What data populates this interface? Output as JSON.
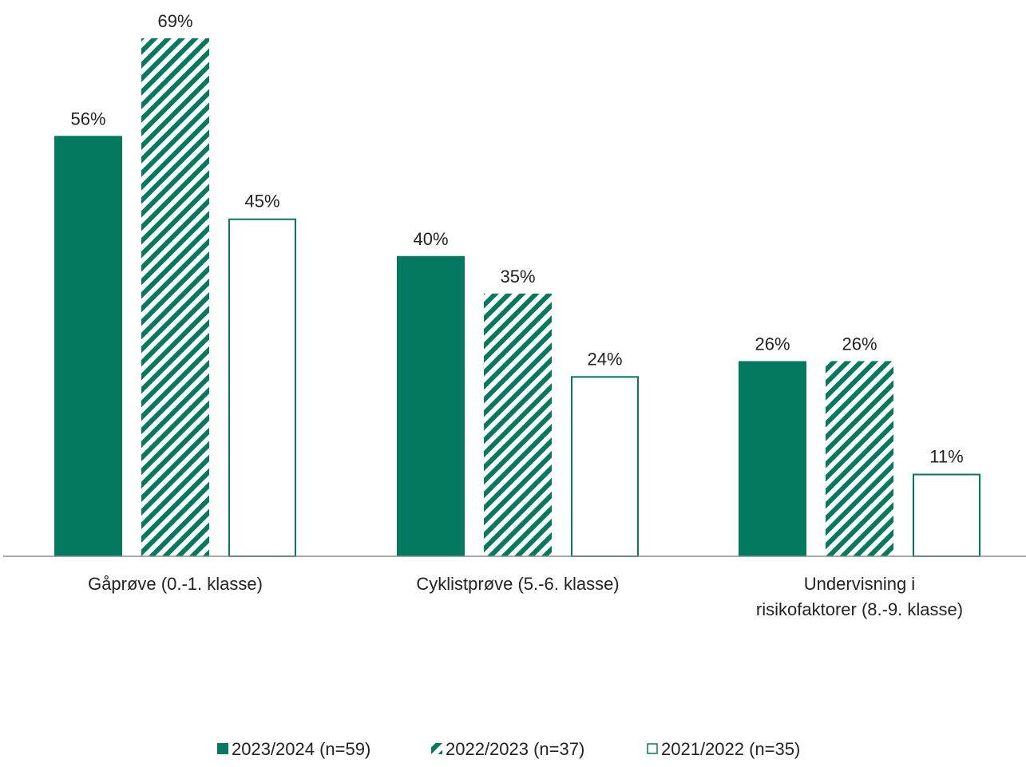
{
  "chart_data": {
    "type": "bar",
    "categories": [
      [
        "Gåprøve (0.-1. klasse)"
      ],
      [
        "Cyklistprøve (5.-6. klasse)"
      ],
      [
        "Undervisning i",
        "risikofaktorer (8.-9. klasse)"
      ]
    ],
    "series": [
      {
        "name": "2023/2024 (n=59)",
        "style": "solid",
        "values": [
          56,
          40,
          26
        ],
        "labels": [
          "56%",
          "40%",
          "26%"
        ]
      },
      {
        "name": "2022/2023 (n=37)",
        "style": "hatched",
        "values": [
          69,
          35,
          26
        ],
        "labels": [
          "69%",
          "35%",
          "26%"
        ]
      },
      {
        "name": "2021/2022 (n=35)",
        "style": "outline",
        "values": [
          45,
          24,
          11
        ],
        "labels": [
          "45%",
          "24%",
          "11%"
        ]
      }
    ],
    "unit": "%",
    "ylim": [
      0,
      69
    ],
    "grid": false,
    "legend_position": "bottom-center",
    "colors": {
      "primary": "#037A5F",
      "outline": "#037A5F",
      "axis": "#8C8C8C",
      "text": "#222222",
      "background": "#FFFFFF"
    }
  }
}
